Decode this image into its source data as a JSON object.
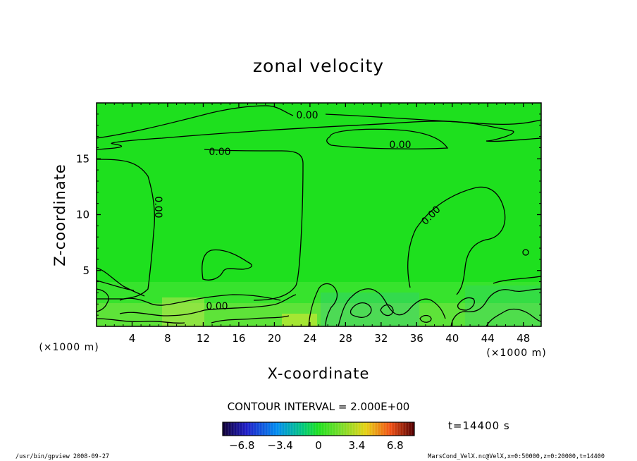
{
  "chart_data": {
    "type": "contour",
    "title": "zonal velocity",
    "xlabel": "X-coordinate",
    "ylabel": "Z-coordinate",
    "x_unit_left": "(×1000 m)",
    "x_unit_right": "(×1000 m)",
    "xlim": [
      0,
      50
    ],
    "ylim": [
      0,
      20
    ],
    "x_ticks": [
      "4",
      "8",
      "12",
      "16",
      "20",
      "24",
      "28",
      "32",
      "36",
      "40",
      "44",
      "48"
    ],
    "x_tick_values": [
      4,
      8,
      12,
      16,
      20,
      24,
      28,
      32,
      36,
      40,
      44,
      48
    ],
    "y_ticks": [
      "5",
      "10",
      "15"
    ],
    "y_tick_values": [
      5,
      10,
      15
    ],
    "contour_level_labels": [
      "0.00",
      "0.00",
      "0.00",
      "0.00",
      "0.00",
      "0.00",
      "0.00"
    ],
    "contour_interval_text": "CONTOUR INTERVAL = 2.000E+00",
    "colorbar_ticks": [
      "−6.8",
      "−3.4",
      "0",
      "3.4",
      "6.8"
    ],
    "colorbar_tick_values": [
      -6.8,
      -3.4,
      0,
      3.4,
      6.8
    ],
    "colorbar_range": [
      -8.5,
      8.5
    ],
    "time_label": "t=14400 s",
    "background_color": "#1ee01e",
    "grid": false
  },
  "footer": {
    "left": "/usr/bin/gpview  2008-09-27",
    "right": "MarsCond_VelX.nc@VelX,x=0:50000,z=0:20000,t=14400"
  }
}
